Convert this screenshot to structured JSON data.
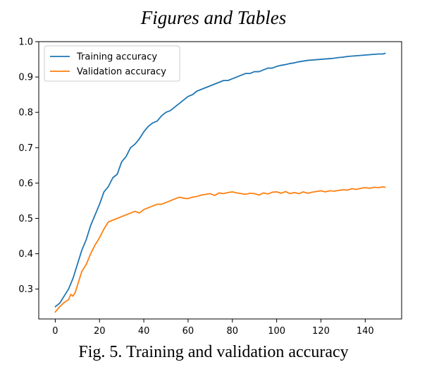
{
  "header": {
    "title": "Figures and Tables"
  },
  "caption": {
    "text": "Fig. 5. Training and validation accuracy"
  },
  "colors": {
    "training": "#1f77b4",
    "validation": "#ff7f0e"
  },
  "chart_data": {
    "type": "line",
    "title": "",
    "xlabel": "",
    "ylabel": "",
    "xlim": [
      -7.45,
      156.45
    ],
    "ylim": [
      0.2155,
      1.0
    ],
    "xticks": [
      0,
      20,
      40,
      60,
      80,
      100,
      120,
      140
    ],
    "yticks": [
      0.3,
      0.4,
      0.5,
      0.6,
      0.7,
      0.8,
      0.9,
      1.0
    ],
    "ytick_labels": [
      "0.3",
      "0.4",
      "0.5",
      "0.6",
      "0.7",
      "0.8",
      "0.9",
      "1.0"
    ],
    "grid": false,
    "legend": "top-left",
    "series": [
      {
        "name": "Training accuracy",
        "color": "#1f77b4",
        "x": [
          0,
          2,
          4,
          6,
          8,
          10,
          12,
          14,
          16,
          18,
          20,
          22,
          24,
          26,
          28,
          30,
          32,
          34,
          36,
          38,
          40,
          42,
          44,
          46,
          48,
          50,
          52,
          54,
          56,
          58,
          60,
          62,
          64,
          66,
          68,
          70,
          72,
          74,
          76,
          78,
          80,
          82,
          84,
          86,
          88,
          90,
          92,
          94,
          96,
          98,
          100,
          102,
          104,
          106,
          108,
          110,
          112,
          114,
          116,
          118,
          120,
          122,
          124,
          126,
          128,
          130,
          132,
          134,
          136,
          138,
          140,
          142,
          144,
          146,
          148,
          149
        ],
        "values": [
          0.25,
          0.26,
          0.28,
          0.3,
          0.33,
          0.37,
          0.41,
          0.44,
          0.48,
          0.51,
          0.54,
          0.575,
          0.59,
          0.615,
          0.625,
          0.66,
          0.675,
          0.7,
          0.71,
          0.725,
          0.745,
          0.76,
          0.77,
          0.775,
          0.79,
          0.8,
          0.805,
          0.815,
          0.825,
          0.835,
          0.845,
          0.85,
          0.86,
          0.865,
          0.87,
          0.875,
          0.88,
          0.885,
          0.89,
          0.89,
          0.895,
          0.9,
          0.905,
          0.91,
          0.91,
          0.915,
          0.915,
          0.92,
          0.925,
          0.925,
          0.93,
          0.933,
          0.935,
          0.938,
          0.94,
          0.943,
          0.945,
          0.947,
          0.948,
          0.949,
          0.95,
          0.951,
          0.952,
          0.953,
          0.955,
          0.956,
          0.958,
          0.959,
          0.96,
          0.961,
          0.962,
          0.963,
          0.964,
          0.965,
          0.965,
          0.967
        ]
      },
      {
        "name": "Validation accuracy",
        "color": "#ff7f0e",
        "x": [
          0,
          2,
          4,
          6,
          7,
          8,
          9,
          10,
          12,
          14,
          16,
          18,
          20,
          22,
          24,
          26,
          28,
          30,
          32,
          34,
          36,
          38,
          40,
          42,
          44,
          46,
          48,
          50,
          52,
          54,
          56,
          58,
          60,
          62,
          64,
          66,
          68,
          70,
          72,
          74,
          76,
          78,
          80,
          82,
          84,
          86,
          88,
          90,
          92,
          94,
          96,
          98,
          100,
          102,
          104,
          106,
          108,
          110,
          112,
          114,
          116,
          118,
          120,
          122,
          124,
          126,
          128,
          130,
          132,
          134,
          136,
          138,
          140,
          142,
          144,
          146,
          148,
          149
        ],
        "values": [
          0.235,
          0.25,
          0.262,
          0.27,
          0.285,
          0.28,
          0.29,
          0.31,
          0.35,
          0.37,
          0.4,
          0.425,
          0.445,
          0.47,
          0.49,
          0.495,
          0.5,
          0.505,
          0.51,
          0.515,
          0.52,
          0.515,
          0.525,
          0.53,
          0.535,
          0.54,
          0.54,
          0.545,
          0.55,
          0.555,
          0.56,
          0.557,
          0.556,
          0.56,
          0.562,
          0.566,
          0.568,
          0.57,
          0.565,
          0.572,
          0.57,
          0.573,
          0.575,
          0.572,
          0.57,
          0.568,
          0.571,
          0.57,
          0.566,
          0.572,
          0.569,
          0.574,
          0.575,
          0.571,
          0.576,
          0.57,
          0.573,
          0.57,
          0.575,
          0.571,
          0.574,
          0.576,
          0.578,
          0.575,
          0.578,
          0.577,
          0.579,
          0.581,
          0.58,
          0.584,
          0.582,
          0.585,
          0.587,
          0.585,
          0.588,
          0.587,
          0.589,
          0.588
        ]
      }
    ]
  }
}
